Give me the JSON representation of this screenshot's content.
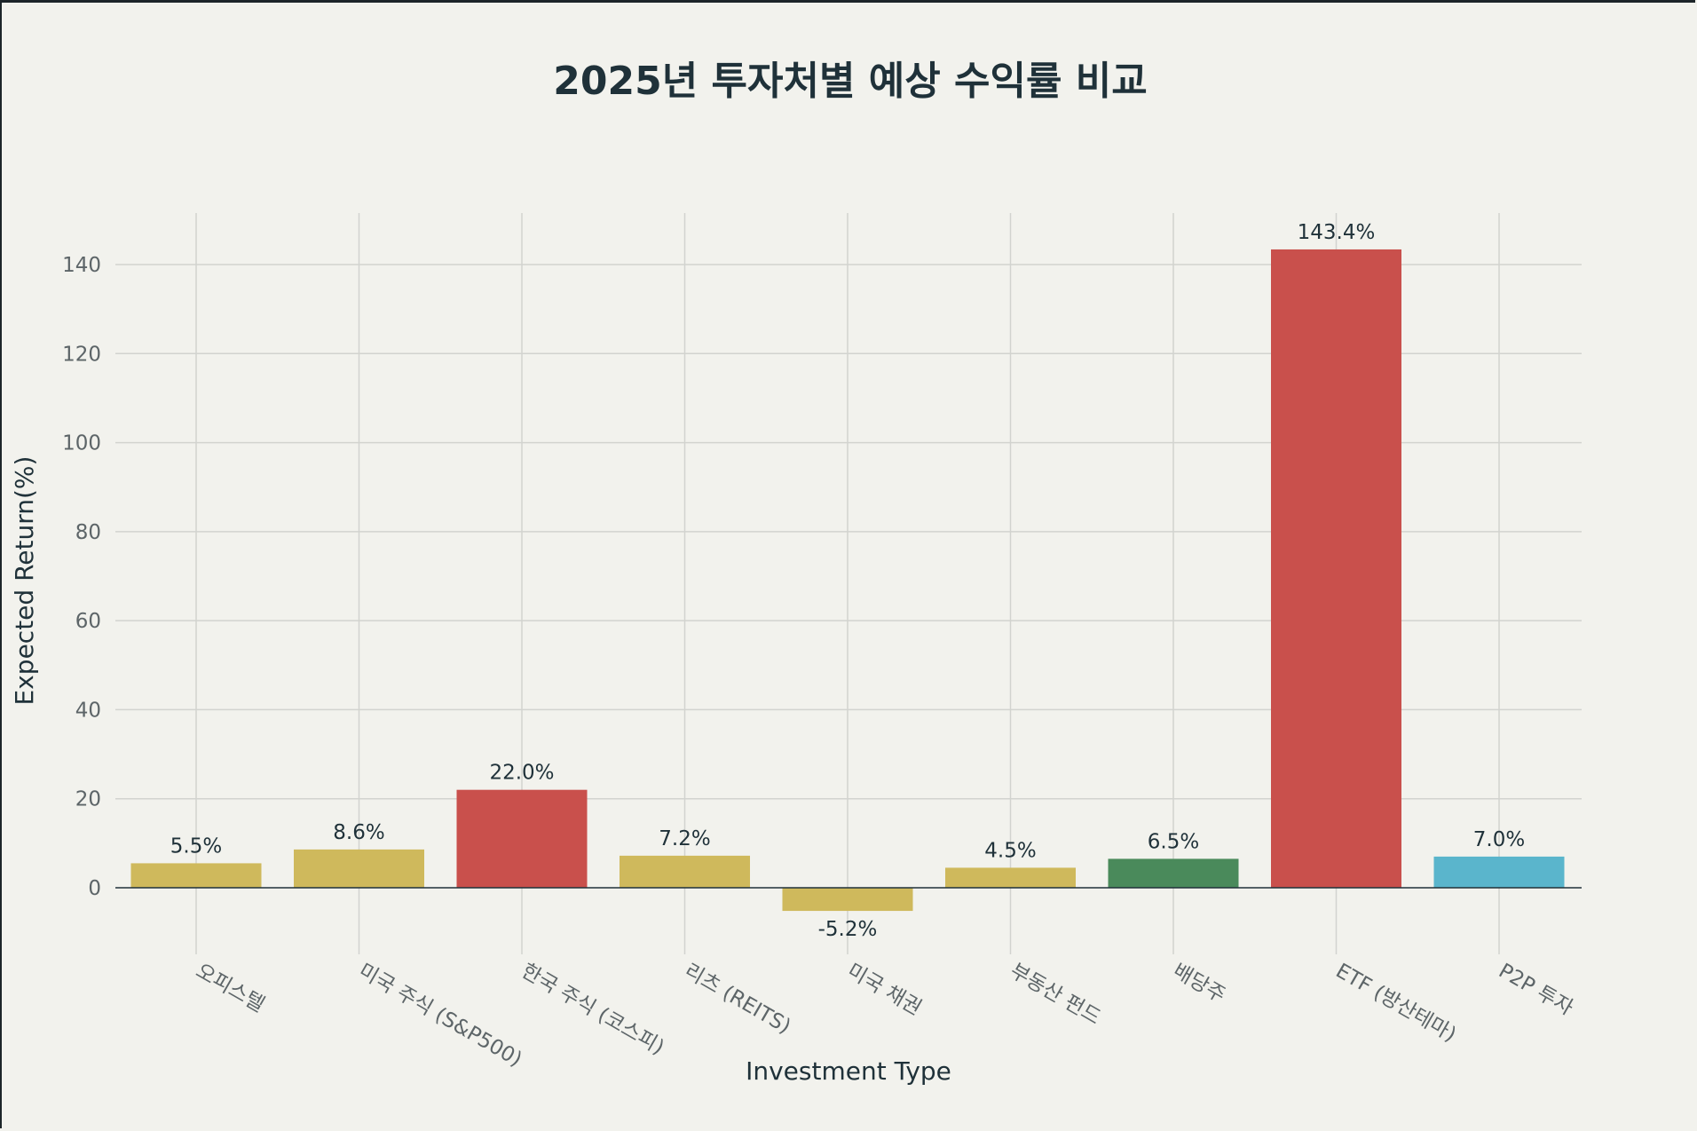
{
  "chart_data": {
    "type": "bar",
    "title": "2025년 투자처별 예상 수익률 비교",
    "xlabel": "Investment Type",
    "ylabel": "Expected Return(%)",
    "categories": [
      "오피스텔",
      "미국 주식 (S&P500)",
      "한국 주식 (코스피)",
      "리츠 (REITS)",
      "미국 채권",
      "부동산 펀드",
      "배당주",
      "ETF (방산테마)",
      "P2P 투자"
    ],
    "values": [
      5.5,
      8.6,
      22.0,
      7.2,
      -5.2,
      4.5,
      6.5,
      143.4,
      7.0
    ],
    "data_labels": [
      "5.5%",
      "8.6%",
      "22.0%",
      "7.2%",
      "-5.2%",
      "4.5%",
      "6.5%",
      "143.4%",
      "7.0%"
    ],
    "bar_colors": [
      "#cfb95c",
      "#cfb95c",
      "#c9504c",
      "#cfb95c",
      "#cfb95c",
      "#cfb95c",
      "#4a8a5b",
      "#c9504c",
      "#5ab5cc"
    ],
    "yticks": [
      0,
      20,
      40,
      60,
      80,
      100,
      120,
      140
    ],
    "ylim": [
      -15,
      153
    ],
    "grid": true,
    "legend": "none"
  }
}
